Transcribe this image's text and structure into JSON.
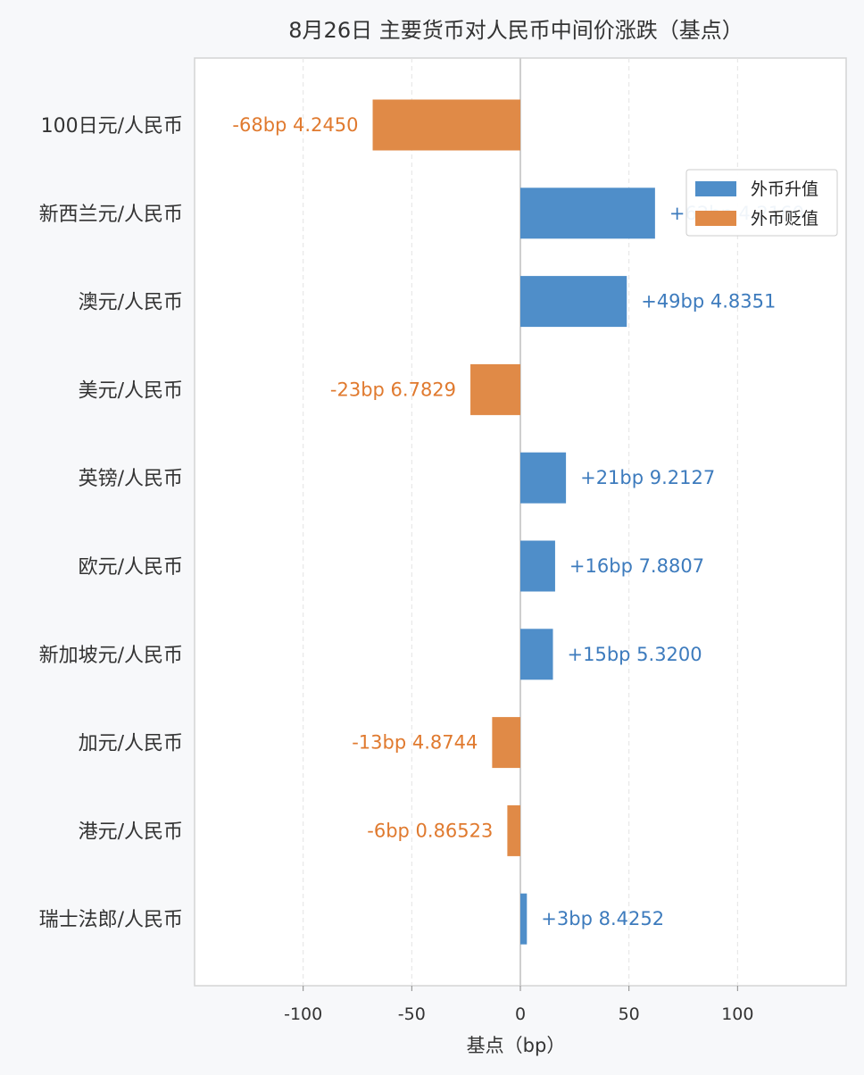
{
  "chart_data": {
    "type": "bar",
    "orientation": "horizontal",
    "title": "8月26日 主要货币对人民币中间价涨跌（基点）",
    "xlabel": "基点（bp）",
    "ylabel": "",
    "xlim": [
      -150,
      150
    ],
    "xticks": [
      -100,
      -50,
      0,
      50,
      100
    ],
    "grid": true,
    "legend_position": "upper right",
    "colors": {
      "up": "#4f8ec9",
      "down": "#e08a47",
      "up_text": "#3d7bbd",
      "down_text": "#e07a2f"
    },
    "legend": [
      {
        "name": "外币升值",
        "key": "up"
      },
      {
        "name": "外币贬值",
        "key": "down"
      }
    ],
    "categories": [
      "100日元/人民币",
      "新西兰元/人民币",
      "澳元/人民币",
      "美元/人民币",
      "英镑/人民币",
      "欧元/人民币",
      "新加坡元/人民币",
      "加元/人民币",
      "港元/人民币",
      "瑞士法郎/人民币"
    ],
    "values": [
      -68,
      62,
      49,
      -23,
      21,
      16,
      15,
      -13,
      -6,
      3
    ],
    "labels": [
      "-68bp  4.2450",
      "+62bp  4.2160",
      "+49bp  4.8351",
      "-23bp  6.7829",
      "+21bp  9.2127",
      "+16bp  7.8807",
      "+15bp  5.3200",
      "-13bp  4.8744",
      "-6bp  0.86523",
      "+3bp  8.4252"
    ]
  }
}
